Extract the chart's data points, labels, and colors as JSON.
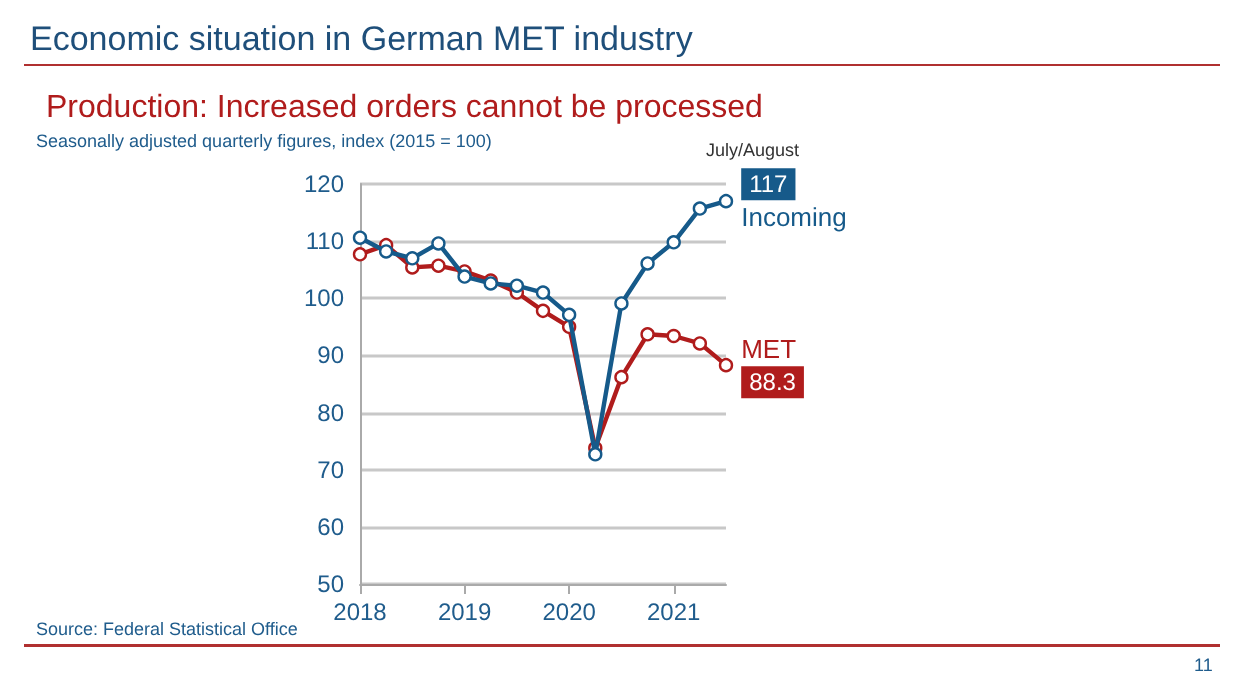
{
  "chart_data": {
    "type": "line",
    "title": "Economic situation in German MET industry",
    "subtitle": "Production: Increased orders cannot be processed",
    "ylabel": "Seasonally adjusted quarterly figures, index (2015 = 100)",
    "x": [
      2018,
      2018.25,
      2018.5,
      2018.75,
      2019,
      2019.25,
      2019.5,
      2019.75,
      2020,
      2020.25,
      2020.5,
      2020.75,
      2021,
      2021.25,
      2021.5
    ],
    "series": [
      {
        "name": "Incoming",
        "color": "#165a8a",
        "values": [
          110.6,
          108.2,
          107.0,
          109.6,
          103.8,
          102.6,
          102.2,
          101.0,
          97.1,
          72.7,
          99.1,
          106.1,
          109.8,
          115.7,
          117
        ],
        "value_labels": [
          null,
          null,
          null,
          null,
          null,
          null,
          null,
          null,
          null,
          null,
          null,
          null,
          null,
          null,
          "117"
        ]
      },
      {
        "name": "MET",
        "color": "#b01c1c",
        "values": [
          107.7,
          109.3,
          105.4,
          105.7,
          104.7,
          103.1,
          101.0,
          97.8,
          95.0,
          73.8,
          86.2,
          93.7,
          93.4,
          92.1,
          88.3
        ],
        "value_labels": [
          null,
          null,
          null,
          null,
          null,
          null,
          null,
          null,
          null,
          null,
          null,
          null,
          null,
          null,
          "88.3"
        ]
      }
    ],
    "xlim": [
      2018,
      2021.5
    ],
    "xticks": [
      2018,
      2019,
      2020,
      2021
    ],
    "ylim": [
      50,
      120
    ],
    "yticks": [
      50,
      60,
      70,
      80,
      90,
      100,
      110,
      120
    ],
    "grid": "y",
    "marker": "circle",
    "line_style": "solid",
    "legend": "right",
    "annotations": [
      {
        "text": "July/August",
        "x": 2021.5,
        "y": 117
      },
      "Source: Federal Statistical Office",
      "11"
    ]
  }
}
